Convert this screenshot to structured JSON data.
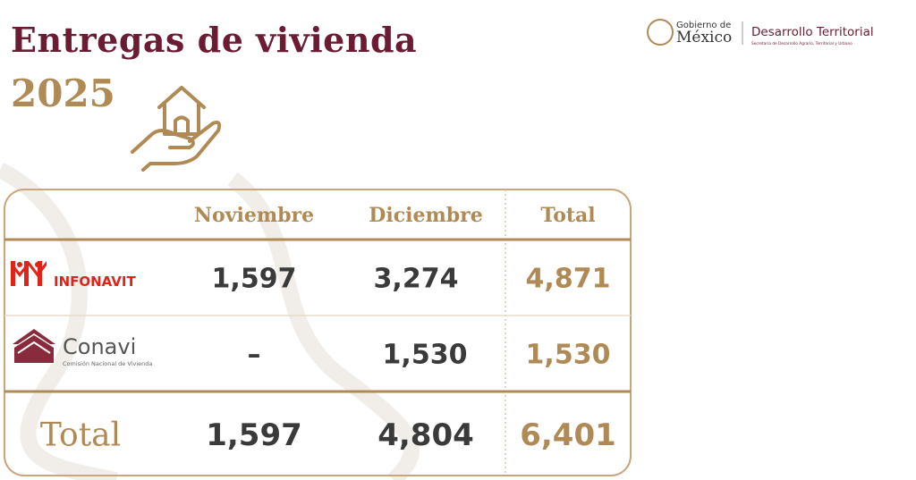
{
  "header": {
    "title": "Entregas de vivienda",
    "year": "2025"
  },
  "logo": {
    "gobierno": "Gobierno de",
    "mexico": "México",
    "agency": "Desarrollo Territorial",
    "agency_sub": "Secretaría de Desarrollo Agrario, Territorial y Urbano"
  },
  "table": {
    "columns": [
      "Noviembre",
      "Diciembre",
      "Total"
    ],
    "rows": [
      {
        "label": "INFONAVIT",
        "cells": [
          "1,597",
          "3,274",
          "4,871"
        ]
      },
      {
        "label": "Conavi",
        "sublabel": "Comisión Nacional de Vivienda",
        "cells": [
          "–",
          "1,530",
          "1,530"
        ]
      },
      {
        "label": "Total",
        "cells": [
          "1,597",
          "4,804",
          "6,401"
        ]
      }
    ]
  }
}
